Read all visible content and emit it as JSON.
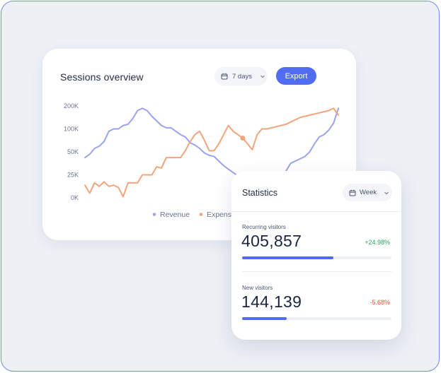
{
  "sessions": {
    "title": "Sessions overview",
    "range_label": "7 days",
    "export_label": "Export"
  },
  "statistics": {
    "title": "Statistics",
    "period_label": "Week",
    "metrics": [
      {
        "label": "Recurring visitors",
        "value": "405,857",
        "change": "+24.98%",
        "trend": "up",
        "progress": 0.61
      },
      {
        "label": "New visitors",
        "value": "144,139",
        "change": "-5.68%",
        "trend": "down",
        "progress": 0.3
      }
    ]
  },
  "colors": {
    "accent": "#4f6cf2",
    "revenue": "#9aa3ee",
    "expenses": "#f4a47a",
    "positive": "#22a65a",
    "negative": "#e0562a"
  },
  "chart_data": {
    "type": "line",
    "yticks": [
      "200K",
      "100K",
      "50K",
      "25K",
      "0K"
    ],
    "ylim": [
      0,
      4
    ],
    "x": [
      0,
      1,
      2,
      3,
      4,
      5,
      6,
      7,
      8,
      9,
      10,
      11,
      12,
      13,
      14,
      15,
      16,
      17,
      18,
      19,
      20,
      21,
      22,
      23,
      24,
      25,
      26,
      27,
      28,
      29,
      30,
      31,
      32,
      33,
      34,
      35,
      36,
      37,
      38,
      39,
      40,
      41,
      42,
      43,
      44,
      45,
      46,
      47,
      48,
      49,
      50,
      51,
      52,
      53
    ],
    "legend": {
      "position": "bottom-center"
    },
    "series": [
      {
        "name": "Revenue",
        "color": "#9aa3ee",
        "values": [
          1.75,
          1.9,
          2.15,
          2.25,
          2.45,
          2.9,
          3.0,
          3.0,
          3.15,
          3.2,
          3.45,
          3.8,
          3.9,
          3.8,
          3.55,
          3.35,
          3.15,
          3.05,
          3.05,
          2.9,
          2.75,
          2.65,
          2.4,
          2.3,
          2.15,
          1.95,
          1.85,
          1.8,
          1.6,
          1.4,
          1.25,
          1.1,
          0.95,
          0.8,
          0.7,
          0.6,
          0.55,
          0.6,
          0.55,
          0.5,
          0.65,
          0.9,
          1.15,
          1.5,
          1.6,
          1.7,
          1.8,
          2.0,
          2.35,
          2.65,
          2.75,
          2.95,
          3.25,
          3.9
        ]
      },
      {
        "name": "Expenses",
        "values": [
          0.55,
          0.2,
          0.65,
          0.5,
          0.7,
          0.5,
          0.55,
          0.45,
          0.05,
          0.65,
          0.65,
          0.65,
          1.0,
          1.0,
          1.0,
          1.35,
          1.3,
          1.75,
          1.75,
          1.75,
          1.75,
          2.05,
          2.45,
          2.75,
          2.9,
          2.5,
          2.05,
          2.05,
          2.35,
          2.75,
          3.15,
          2.9,
          2.75,
          2.6,
          2.35,
          2.1,
          2.75,
          3.0,
          3.0,
          3.05,
          3.1,
          3.15,
          3.2,
          3.3,
          3.4,
          3.5,
          3.55,
          3.6,
          3.65,
          3.7,
          3.75,
          3.8,
          3.9,
          3.6
        ]
      }
    ]
  }
}
